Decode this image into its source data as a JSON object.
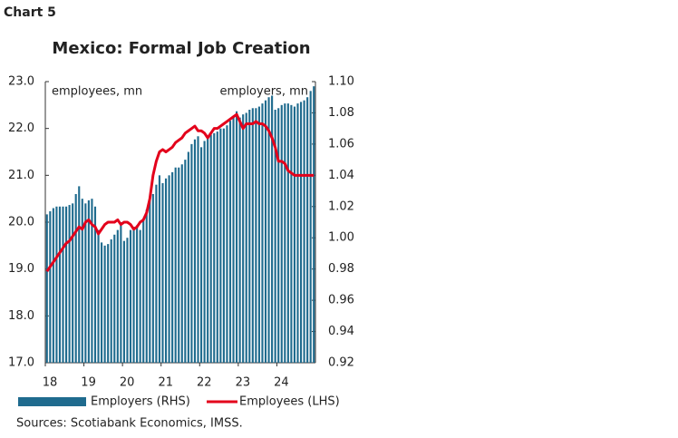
{
  "chart_label": "Chart 5",
  "chart_data": {
    "type": "bar",
    "title": "Mexico: Formal Job Creation",
    "y_label": "employees, mn",
    "y2_label": "employers, mn",
    "source": "Sources: Scotiabank Economics, IMSS.",
    "categories": [
      "18",
      null,
      null,
      null,
      null,
      null,
      null,
      null,
      null,
      null,
      null,
      null,
      "19",
      null,
      null,
      null,
      null,
      null,
      null,
      null,
      null,
      null,
      null,
      null,
      "20",
      null,
      null,
      null,
      null,
      null,
      null,
      null,
      null,
      null,
      null,
      null,
      "21",
      null,
      null,
      null,
      null,
      null,
      null,
      null,
      null,
      null,
      null,
      null,
      "22",
      null,
      null,
      null,
      null,
      null,
      null,
      null,
      null,
      null,
      null,
      null,
      "23",
      null,
      null,
      null,
      null,
      null,
      null,
      null,
      null,
      null,
      null,
      null,
      "24",
      null,
      null,
      null,
      null,
      null,
      null,
      null,
      null,
      null,
      null,
      null
    ],
    "ylim": [
      17,
      23
    ],
    "yticks": [
      {
        "value": 17,
        "label": "17.0"
      },
      {
        "value": 18,
        "label": "18.0"
      },
      {
        "value": 19,
        "label": "19.0"
      },
      {
        "value": 20,
        "label": "20.0"
      },
      {
        "value": 21,
        "label": "21.0"
      },
      {
        "value": 22,
        "label": "22.0"
      },
      {
        "value": 23,
        "label": "23.0"
      }
    ],
    "y2lim": [
      0.92,
      1.1
    ],
    "y2ticks": [
      0.92,
      0.94,
      0.96,
      0.98,
      {
        "value": 1.0,
        "label": "1.00"
      },
      1.02,
      1.04,
      1.06,
      1.08,
      {
        "value": 1.1,
        "label": "1.10"
      }
    ],
    "series": [
      {
        "name": "Employers (RHS)",
        "type": "bar",
        "axis": "y2",
        "color": "#1f6b8e",
        "values": [
          1.015,
          1.017,
          1.019,
          1.02,
          1.02,
          1.02,
          1.02,
          1.021,
          1.022,
          1.028,
          1.033,
          1.025,
          1.022,
          1.024,
          1.025,
          1.02,
          1.005,
          0.997,
          0.995,
          0.996,
          0.999,
          1.002,
          1.005,
          1.01,
          0.998,
          1.0,
          1.005,
          1.007,
          1.008,
          1.005,
          1.012,
          1.018,
          1.024,
          1.028,
          1.034,
          1.04,
          1.035,
          1.038,
          1.04,
          1.042,
          1.045,
          1.045,
          1.047,
          1.05,
          1.055,
          1.06,
          1.063,
          1.065,
          1.058,
          1.062,
          1.065,
          1.066,
          1.067,
          1.068,
          1.07,
          1.07,
          1.072,
          1.075,
          1.078,
          1.081,
          1.077,
          1.079,
          1.08,
          1.082,
          1.083,
          1.083,
          1.084,
          1.086,
          1.088,
          1.09,
          1.091,
          1.082,
          1.083,
          1.085,
          1.086,
          1.086,
          1.085,
          1.084,
          1.086,
          1.087,
          1.088,
          1.09,
          1.094,
          1.097
        ]
      },
      {
        "name": "Employees (LHS)",
        "type": "line",
        "color": "#e3001b",
        "values": [
          18.95,
          19.05,
          19.15,
          19.25,
          19.35,
          19.45,
          19.55,
          19.6,
          19.7,
          19.8,
          19.9,
          19.85,
          20.0,
          20.05,
          19.95,
          19.9,
          19.75,
          19.85,
          19.95,
          20.0,
          20.0,
          20.0,
          20.05,
          19.95,
          20.0,
          20.0,
          19.95,
          19.85,
          19.9,
          20.0,
          20.05,
          20.2,
          20.5,
          21.0,
          21.3,
          21.5,
          21.55,
          21.5,
          21.55,
          21.6,
          21.7,
          21.75,
          21.8,
          21.9,
          21.95,
          22.0,
          22.05,
          21.95,
          21.95,
          21.9,
          21.8,
          21.9,
          22.0,
          22.0,
          22.05,
          22.1,
          22.15,
          22.2,
          22.25,
          22.3,
          22.15,
          22.0,
          22.1,
          22.1,
          22.1,
          22.15,
          22.1,
          22.1,
          22.05,
          21.95,
          21.8,
          21.6,
          21.3,
          21.3,
          21.25,
          21.1,
          21.05,
          21.0,
          21.0,
          21.0,
          21.0,
          21.0,
          21.0,
          21.0
        ]
      }
    ]
  }
}
